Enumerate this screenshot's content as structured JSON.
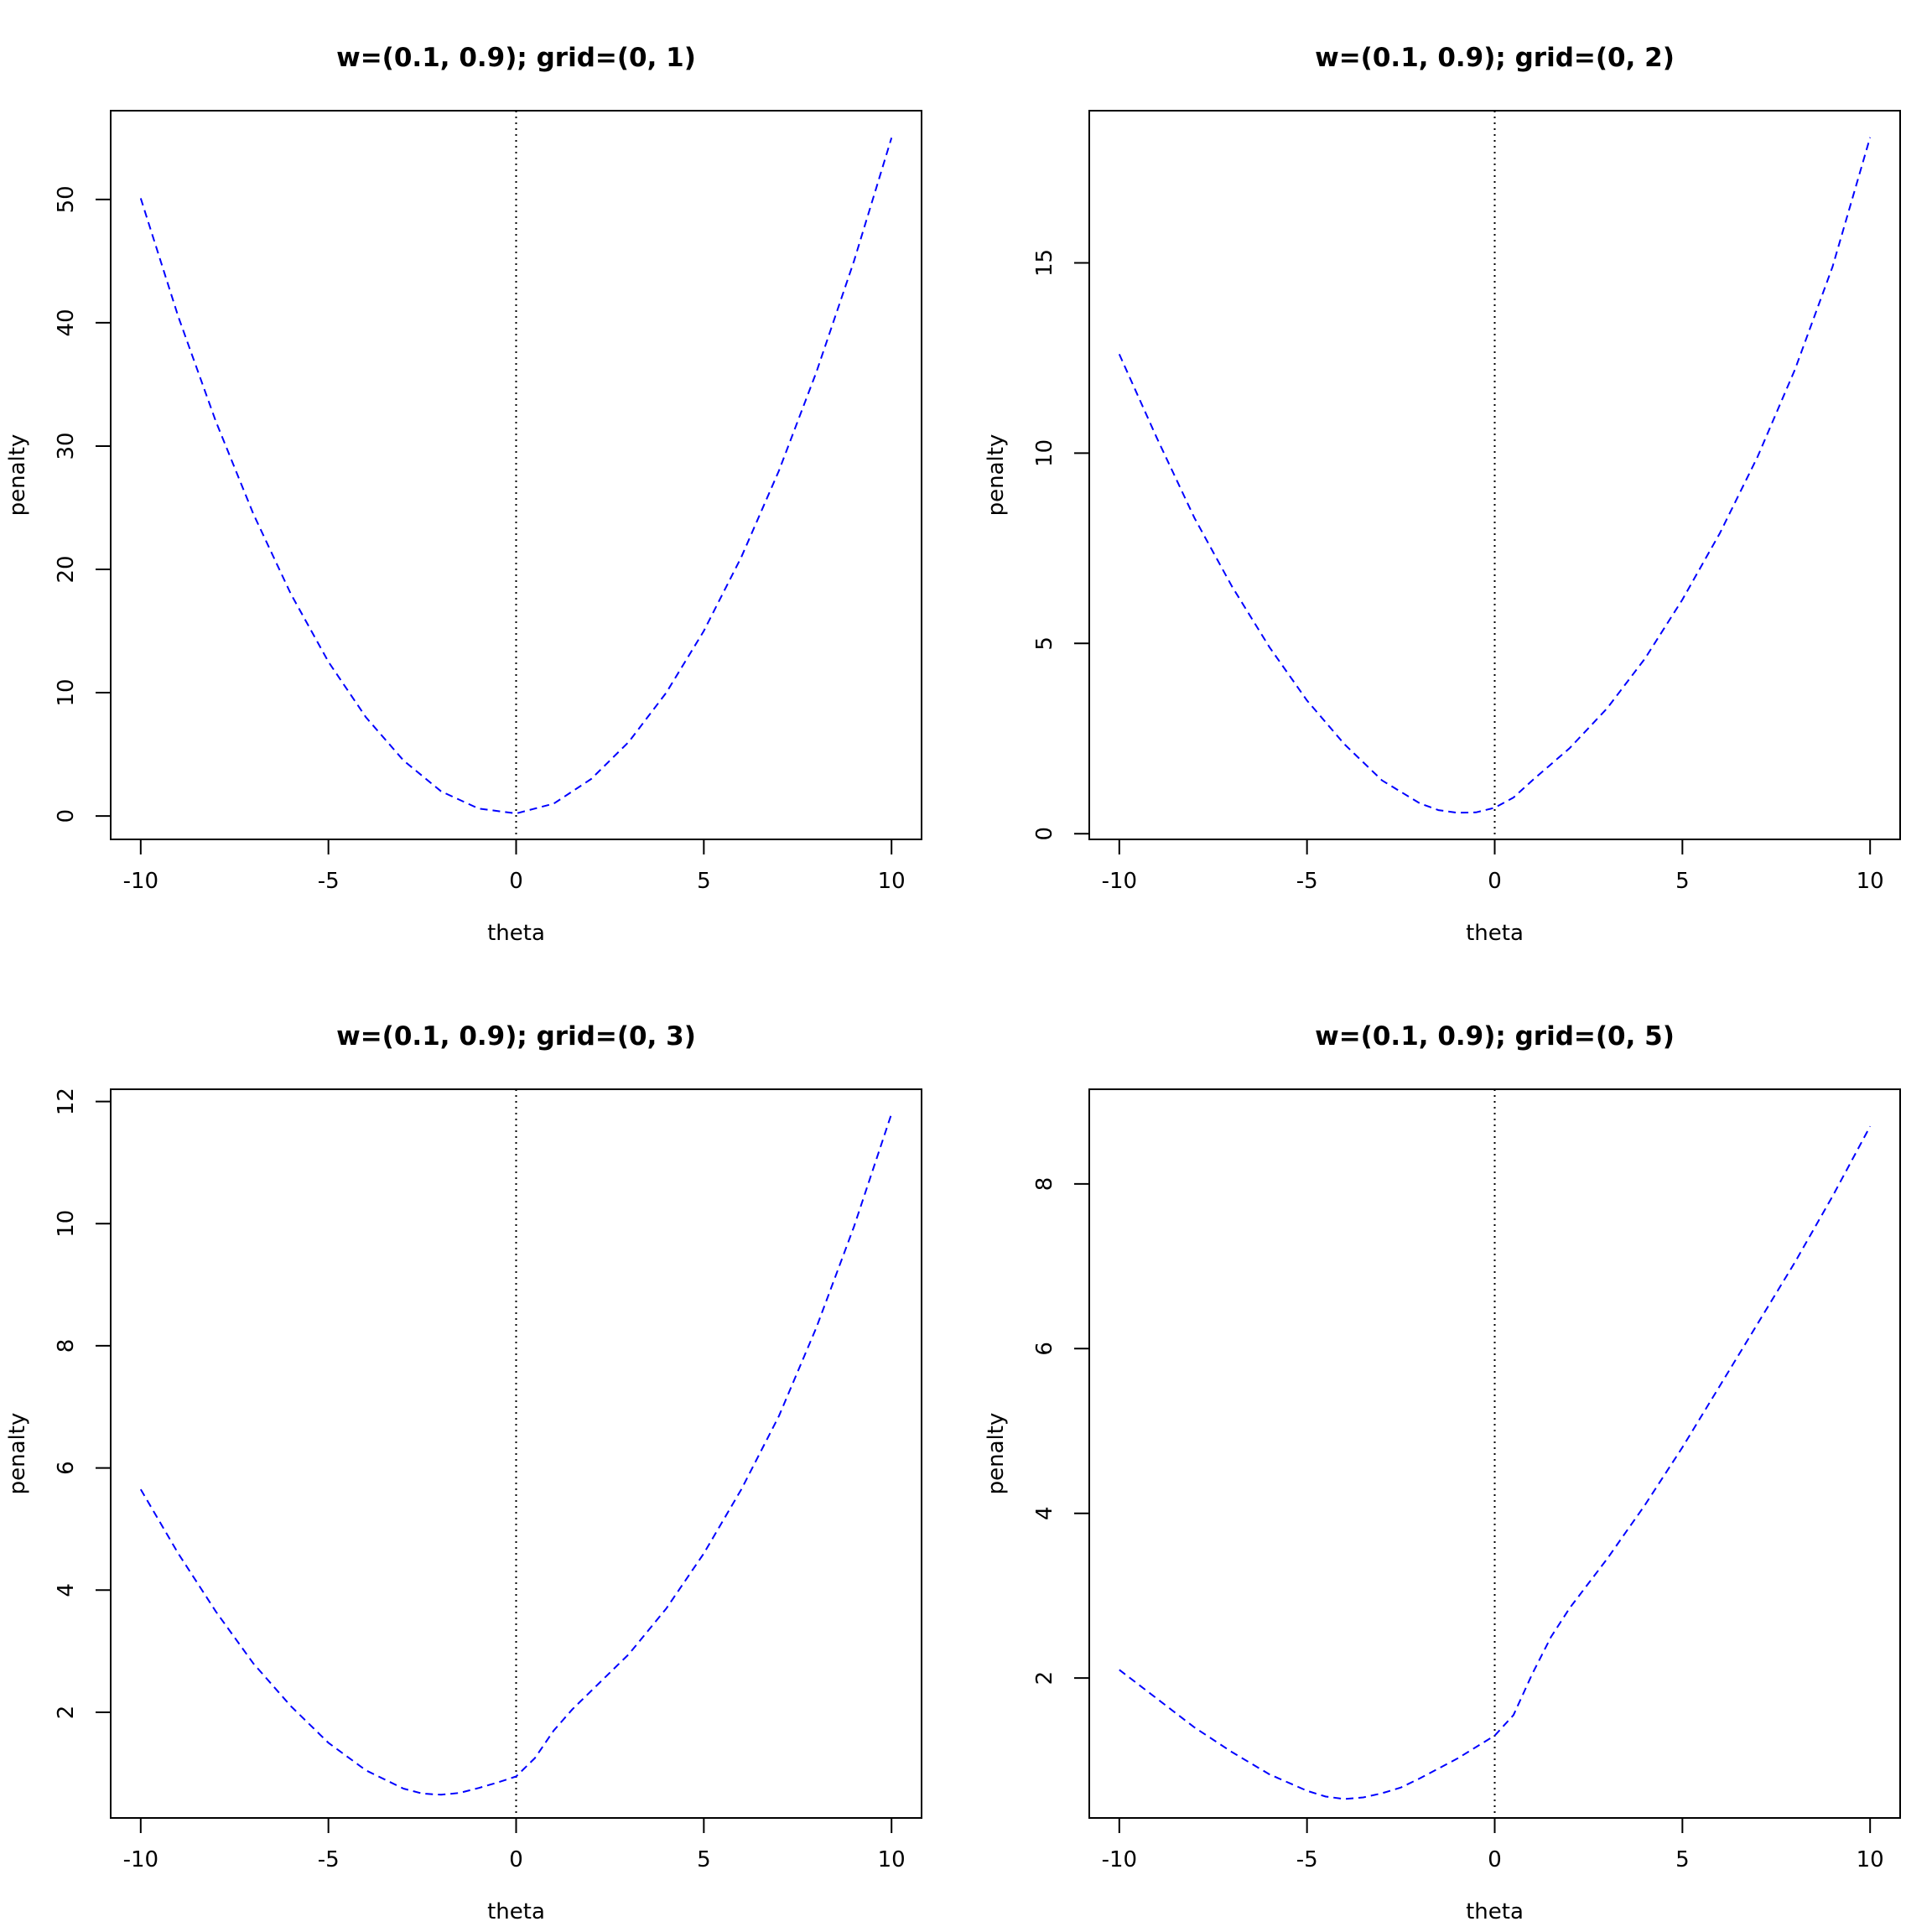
{
  "figure": {
    "background": "#ffffff",
    "line_color": "#0000ff",
    "axis_color": "#000000"
  },
  "chart_data": [
    {
      "type": "line",
      "title": "w=(0.1, 0.9); grid=(0, 1)",
      "xlabel": "theta",
      "ylabel": "penalty",
      "xlim": [
        -10.8,
        10.8
      ],
      "ylim": [
        -1.9,
        57.2
      ],
      "xticks": [
        -10,
        -5,
        0,
        5,
        10
      ],
      "xtick_labels": [
        "-10",
        "-5",
        "0",
        "5",
        "10"
      ],
      "yticks": [
        0,
        10,
        20,
        30,
        40,
        50
      ],
      "ytick_labels": [
        "0",
        "10",
        "20",
        "30",
        "40",
        "50"
      ],
      "vline_x": 0,
      "grid": false,
      "series": [
        {
          "line_style": "dashed",
          "x": [
            -10,
            -9,
            -8,
            -7,
            -6,
            -5,
            -4,
            -3,
            -2,
            -1,
            0,
            1,
            2,
            3,
            4,
            5,
            6,
            7,
            8,
            9,
            10
          ],
          "y": [
            50.1,
            40.5,
            32.0,
            24.5,
            18.0,
            12.5,
            8.0,
            4.5,
            2.0,
            0.6,
            0.2,
            1.0,
            3.0,
            6.0,
            10.0,
            15.0,
            21.0,
            28.0,
            36.0,
            45.0,
            55.0
          ]
        }
      ]
    },
    {
      "type": "line",
      "title": "w=(0.1, 0.9); grid=(0, 2)",
      "xlabel": "theta",
      "ylabel": "penalty",
      "xlim": [
        -10.8,
        10.8
      ],
      "ylim": [
        -0.15,
        19.0
      ],
      "xticks": [
        -10,
        -5,
        0,
        5,
        10
      ],
      "xtick_labels": [
        "-10",
        "-5",
        "0",
        "5",
        "10"
      ],
      "yticks": [
        0,
        5,
        10,
        15
      ],
      "ytick_labels": [
        "0",
        "5",
        "10",
        "15"
      ],
      "vline_x": 0,
      "grid": false,
      "series": [
        {
          "line_style": "dashed",
          "x": [
            -10,
            -9,
            -8,
            -7,
            -6,
            -5,
            -4,
            -3,
            -2,
            -1.5,
            -1,
            -0.5,
            0,
            0.5,
            1,
            2,
            3,
            4,
            5,
            6,
            7,
            8,
            9,
            10
          ],
          "y": [
            12.6,
            10.4,
            8.3,
            6.5,
            4.9,
            3.5,
            2.35,
            1.4,
            0.8,
            0.62,
            0.55,
            0.56,
            0.68,
            0.95,
            1.4,
            2.25,
            3.3,
            4.6,
            6.15,
            7.9,
            9.9,
            12.2,
            14.9,
            18.3
          ]
        }
      ]
    },
    {
      "type": "line",
      "title": "w=(0.1, 0.9); grid=(0, 3)",
      "xlabel": "theta",
      "ylabel": "penalty",
      "xlim": [
        -10.8,
        10.8
      ],
      "ylim": [
        0.27,
        12.2
      ],
      "xticks": [
        -10,
        -5,
        0,
        5,
        10
      ],
      "xtick_labels": [
        "-10",
        "-5",
        "0",
        "5",
        "10"
      ],
      "yticks": [
        2,
        4,
        6,
        8,
        10,
        12
      ],
      "ytick_labels": [
        "2",
        "4",
        "6",
        "8",
        "10",
        "12"
      ],
      "vline_x": 0,
      "grid": false,
      "series": [
        {
          "line_style": "dashed",
          "x": [
            -10,
            -9,
            -8,
            -7,
            -6,
            -5,
            -4,
            -3,
            -2.5,
            -2,
            -1.5,
            -1,
            -0.5,
            0,
            0.5,
            1,
            1.5,
            2,
            3,
            4,
            5,
            6,
            7,
            8,
            9,
            10
          ],
          "y": [
            5.65,
            4.6,
            3.65,
            2.8,
            2.1,
            1.5,
            1.05,
            0.75,
            0.67,
            0.65,
            0.68,
            0.76,
            0.85,
            0.95,
            1.25,
            1.7,
            2.05,
            2.35,
            2.95,
            3.7,
            4.6,
            5.65,
            6.85,
            8.3,
            9.95,
            11.8
          ]
        }
      ]
    },
    {
      "type": "line",
      "title": "w=(0.1, 0.9); grid=(0, 5)",
      "xlabel": "theta",
      "ylabel": "penalty",
      "xlim": [
        -10.8,
        10.8
      ],
      "ylim": [
        0.3,
        9.15
      ],
      "xticks": [
        -10,
        -5,
        0,
        5,
        10
      ],
      "xtick_labels": [
        "-10",
        "-5",
        "0",
        "5",
        "10"
      ],
      "yticks": [
        2,
        4,
        6,
        8
      ],
      "ytick_labels": [
        "2",
        "4",
        "6",
        "8"
      ],
      "vline_x": 0,
      "grid": false,
      "series": [
        {
          "line_style": "dashed",
          "x": [
            -10,
            -9,
            -8,
            -7,
            -6,
            -5,
            -4.5,
            -4,
            -3.5,
            -3,
            -2.5,
            -2,
            -1,
            0,
            0.5,
            1,
            1.5,
            2,
            3,
            4,
            5,
            6,
            7,
            8,
            9,
            10
          ],
          "y": [
            2.1,
            1.75,
            1.4,
            1.1,
            0.83,
            0.63,
            0.56,
            0.53,
            0.55,
            0.6,
            0.67,
            0.78,
            1.02,
            1.3,
            1.55,
            2.05,
            2.5,
            2.85,
            3.45,
            4.1,
            4.8,
            5.55,
            6.3,
            7.05,
            7.85,
            8.7
          ]
        }
      ]
    }
  ]
}
